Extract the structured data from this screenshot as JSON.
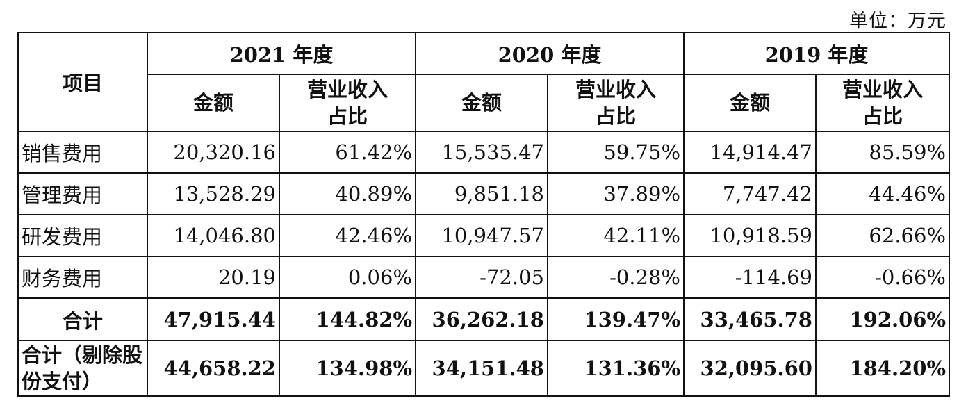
{
  "unit": "单位：万元",
  "header": {
    "item": "项目",
    "years": [
      "2021 年度",
      "2020 年度",
      "2019 年度"
    ],
    "amount": "金额",
    "ratio_line1": "营业收入",
    "ratio_line2": "占比"
  },
  "rows": [
    {
      "label": "销售费用",
      "values": [
        "20,320.16",
        "61.42%",
        "15,535.47",
        "59.75%",
        "14,914.47",
        "85.59%"
      ]
    },
    {
      "label": "管理费用",
      "values": [
        "13,528.29",
        "40.89%",
        "9,851.18",
        "37.89%",
        "7,747.42",
        "44.46%"
      ]
    },
    {
      "label": "研发费用",
      "values": [
        "14,046.80",
        "42.46%",
        "10,947.57",
        "42.11%",
        "10,918.59",
        "62.66%"
      ]
    },
    {
      "label": "财务费用",
      "values": [
        "20.19",
        "0.06%",
        "-72.05",
        "-0.28%",
        "-114.69",
        "-0.66%"
      ]
    }
  ],
  "total": {
    "label": "合计",
    "values": [
      "47,915.44",
      "144.82%",
      "36,262.18",
      "139.47%",
      "33,465.78",
      "192.06%"
    ]
  },
  "total_excl": {
    "label_line1": "合计（剔除股",
    "label_line2": "份支付）",
    "values": [
      "44,658.22",
      "134.98%",
      "34,151.48",
      "131.36%",
      "32,095.60",
      "184.20%"
    ]
  }
}
